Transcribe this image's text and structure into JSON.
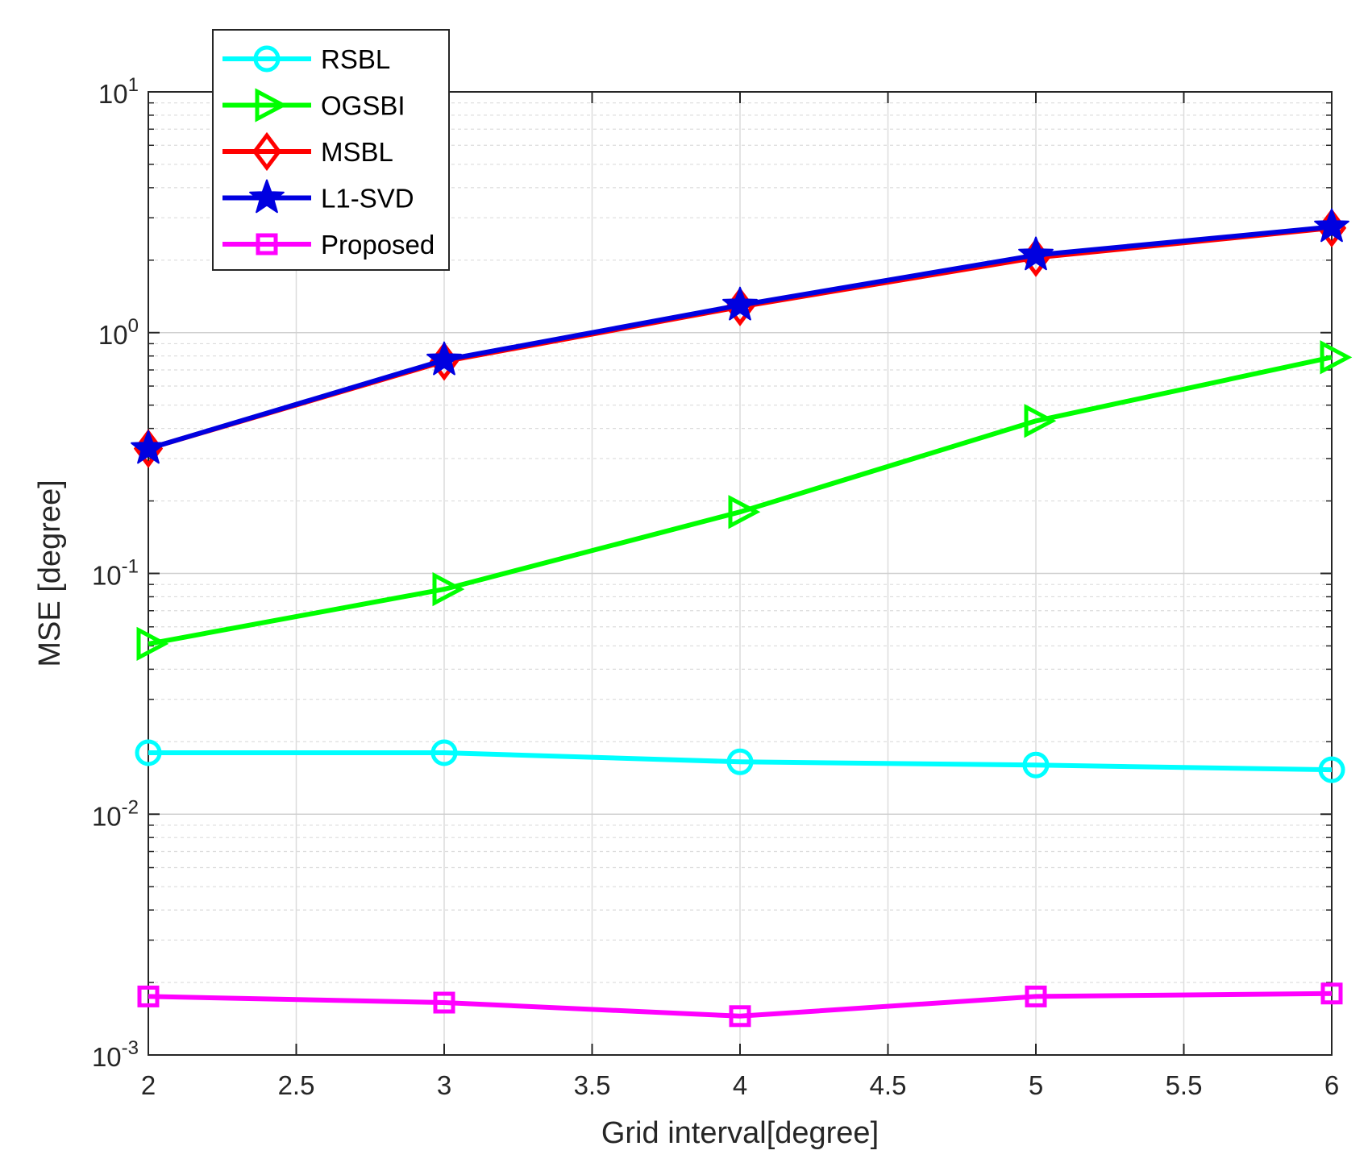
{
  "chart_data": {
    "type": "line",
    "xlabel": "Grid interval[degree]",
    "ylabel": "MSE [degree]",
    "x": [
      2,
      3,
      4,
      5,
      6
    ],
    "xlim": [
      2,
      6
    ],
    "ylim": [
      0.001,
      10
    ],
    "yscale": "log",
    "x_ticks": [
      "2",
      "2.5",
      "3",
      "3.5",
      "4",
      "4.5",
      "5",
      "5.5",
      "6"
    ],
    "y_ticks": [
      {
        "base": "10",
        "exp": "-3"
      },
      {
        "base": "10",
        "exp": "-2"
      },
      {
        "base": "10",
        "exp": "-1"
      },
      {
        "base": "10",
        "exp": "0"
      },
      {
        "base": "10",
        "exp": "1"
      }
    ],
    "grid": true,
    "legend_position": "top-left",
    "series": [
      {
        "name": "RSBL",
        "color": "#00ffff",
        "marker": "circle",
        "values": [
          0.018,
          0.018,
          0.0165,
          0.016,
          0.0153
        ]
      },
      {
        "name": "OGSBI",
        "color": "#00ff00",
        "marker": "triangle-right",
        "values": [
          0.051,
          0.086,
          0.18,
          0.43,
          0.79
        ]
      },
      {
        "name": "MSBL",
        "color": "#ff0000",
        "marker": "diamond",
        "values": [
          0.33,
          0.76,
          1.28,
          2.05,
          2.72
        ]
      },
      {
        "name": "L1-SVD",
        "color": "#0000e0",
        "marker": "star",
        "values": [
          0.33,
          0.77,
          1.3,
          2.1,
          2.75
        ]
      },
      {
        "name": "Proposed",
        "color": "#ff00ff",
        "marker": "square",
        "values": [
          0.00175,
          0.00165,
          0.00145,
          0.00175,
          0.0018
        ]
      }
    ]
  }
}
